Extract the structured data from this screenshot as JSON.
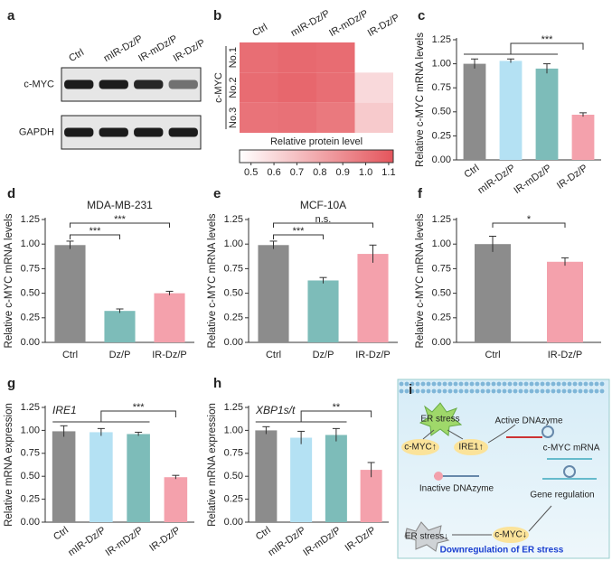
{
  "chart_data": [
    {
      "panel": "a",
      "type": "blot",
      "categories": [
        "Ctrl",
        "mIR-Dz/P",
        "IR-mDz/P",
        "IR-Dz/P"
      ],
      "rows": [
        "c-MYC",
        "GAPDH"
      ]
    },
    {
      "panel": "b",
      "type": "heatmap",
      "columns": [
        "Ctrl",
        "mIR-Dz/P",
        "IR-mDz/P",
        "IR-Dz/P"
      ],
      "rows": [
        "No.1",
        "No.2",
        "No.3"
      ],
      "group": "c-MYC",
      "values": [
        [
          1.02,
          1.04,
          1.03,
          0.45
        ],
        [
          1.03,
          1.05,
          1.02,
          0.6
        ],
        [
          1.0,
          1.01,
          0.98,
          0.66
        ]
      ],
      "colorbar_label": "Relative protein level",
      "clim": [
        0.45,
        1.12
      ],
      "cticks": [
        0.5,
        0.6,
        0.7,
        0.8,
        0.9,
        {
          "value": 1,
          "label": "1.0"
        },
        1.1
      ],
      "colors": [
        "#ffffff",
        "#e4555c"
      ]
    },
    {
      "panel": "c",
      "type": "bar",
      "ylabel": "Relative c-MYC mRNA levels",
      "categories": [
        "Ctrl",
        "mIR-Dz/P",
        "IR-mDz/P",
        "IR-Dz/P"
      ],
      "values": [
        1.0,
        1.03,
        0.95,
        0.47
      ],
      "errors": [
        0.05,
        0.02,
        0.05,
        0.02
      ],
      "colors": [
        "#8c8c8c",
        "#b4e1f3",
        "#7dbcb9",
        "#f4a1ac"
      ],
      "ylim": [
        0,
        1.25
      ],
      "yticks": [
        {
          "value": 0,
          "label": "0.00"
        },
        0.25,
        {
          "value": 0.5,
          "label": "0.50"
        },
        0.75,
        {
          "value": 1,
          "label": "1.00"
        },
        1.25
      ],
      "annotations": [
        {
          "text": "***",
          "left": [
            0,
            2
          ],
          "right": 3
        }
      ]
    },
    {
      "panel": "d",
      "type": "bar",
      "title": "MDA-MB-231",
      "ylabel": "Relative c-MYC mRNA levels",
      "categories": [
        "Ctrl",
        "Dz/P",
        "IR-Dz/P"
      ],
      "values": [
        0.99,
        0.32,
        0.5
      ],
      "errors": [
        0.04,
        0.02,
        0.02
      ],
      "colors": [
        "#8c8c8c",
        "#7dbcb9",
        "#f4a1ac"
      ],
      "ylim": [
        0,
        1.25
      ],
      "yticks": [
        {
          "value": 0,
          "label": "0.00"
        },
        0.25,
        {
          "value": 0.5,
          "label": "0.50"
        },
        0.75,
        {
          "value": 1,
          "label": "1.00"
        },
        1.25
      ],
      "annotations": [
        {
          "text": "***",
          "left": [
            0,
            0
          ],
          "right": 1
        },
        {
          "text": "***",
          "left": [
            0,
            0
          ],
          "right": 2
        }
      ]
    },
    {
      "panel": "e",
      "type": "bar",
      "title": "MCF-10A",
      "ylabel": "Relative c-MYC mRNA levels",
      "categories": [
        "Ctrl",
        "Dz/P",
        "IR-Dz/P"
      ],
      "values": [
        0.99,
        0.63,
        0.9
      ],
      "errors": [
        0.04,
        0.03,
        0.09
      ],
      "colors": [
        "#8c8c8c",
        "#7dbcb9",
        "#f4a1ac"
      ],
      "ylim": [
        0,
        1.25
      ],
      "yticks": [
        {
          "value": 0,
          "label": "0.00"
        },
        0.25,
        {
          "value": 0.5,
          "label": "0.50"
        },
        0.75,
        {
          "value": 1,
          "label": "1.00"
        },
        1.25
      ],
      "annotations": [
        {
          "text": "***",
          "left": [
            0,
            0
          ],
          "right": 1
        },
        {
          "text": "n.s.",
          "left": [
            0,
            0
          ],
          "right": 2
        }
      ]
    },
    {
      "panel": "f",
      "type": "bar",
      "ylabel": "Relative c-MYC mRNA levels",
      "categories": [
        "Ctrl",
        "IR-Dz/P"
      ],
      "values": [
        1.0,
        0.82
      ],
      "errors": [
        0.08,
        0.04
      ],
      "colors": [
        "#8c8c8c",
        "#f4a1ac"
      ],
      "ylim": [
        0,
        1.25
      ],
      "yticks": [
        {
          "value": 0,
          "label": "0.00"
        },
        0.25,
        {
          "value": 0.5,
          "label": "0.50"
        },
        0.75,
        {
          "value": 1,
          "label": "1.00"
        },
        1.25
      ],
      "annotations": [
        {
          "text": "*",
          "left": [
            0,
            0
          ],
          "right": 1
        }
      ]
    },
    {
      "panel": "g",
      "type": "bar",
      "gene": "IRE1",
      "ylabel": "Relative mRNA expression",
      "categories": [
        "Ctrl",
        "mIR-Dz/P",
        "IR-mDz/P",
        "IR-Dz/P"
      ],
      "values": [
        0.99,
        0.98,
        0.96,
        0.49
      ],
      "errors": [
        0.06,
        0.04,
        0.02,
        0.02
      ],
      "colors": [
        "#8c8c8c",
        "#b4e1f3",
        "#7dbcb9",
        "#f4a1ac"
      ],
      "ylim": [
        0,
        1.25
      ],
      "yticks": [
        {
          "value": 0,
          "label": "0.00"
        },
        0.25,
        {
          "value": 0.5,
          "label": "0.50"
        },
        0.75,
        {
          "value": 1,
          "label": "1.00"
        },
        1.25
      ],
      "annotations": [
        {
          "text": "***",
          "left": [
            0,
            2
          ],
          "right": 3
        }
      ]
    },
    {
      "panel": "h",
      "type": "bar",
      "gene": "XBP1s/t",
      "ylabel": "Relative mRNA expression",
      "categories": [
        "Ctrl",
        "mIR-Dz/P",
        "IR-mDz/P",
        "IR-Dz/P"
      ],
      "values": [
        1.0,
        0.92,
        0.95,
        0.57
      ],
      "errors": [
        0.04,
        0.07,
        0.07,
        0.08
      ],
      "colors": [
        "#8c8c8c",
        "#b4e1f3",
        "#7dbcb9",
        "#f4a1ac"
      ],
      "ylim": [
        0,
        1.25
      ],
      "yticks": [
        {
          "value": 0,
          "label": "0.00"
        },
        0.25,
        {
          "value": 0.5,
          "label": "0.50"
        },
        0.75,
        {
          "value": 1,
          "label": "1.00"
        },
        1.25
      ],
      "annotations": [
        {
          "text": "**",
          "left": [
            0,
            2
          ],
          "right": 3
        }
      ]
    }
  ],
  "diagram": {
    "panel": "i",
    "texts": [
      "ER stress",
      "c-MYC↑",
      "IRE1↑",
      "Active DNAzyme",
      "c-MYC mRNA",
      "Inactive DNAzyme",
      "Gene regulation",
      "ER stress↓",
      "c-MYC↓",
      "Downregulation of ER stress"
    ]
  }
}
